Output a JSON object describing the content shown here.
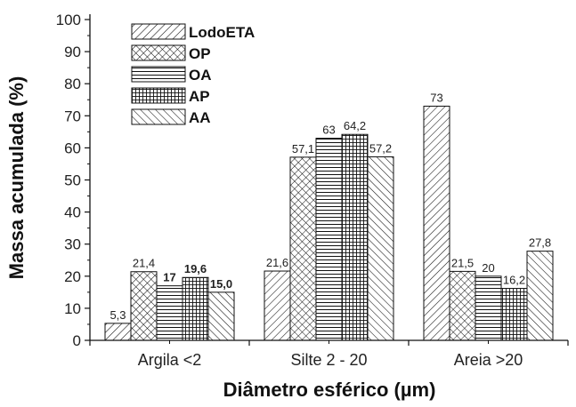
{
  "chart_data": {
    "type": "bar",
    "xlabel": "Diâmetro esférico (µm)",
    "ylabel": "Massa acumulada (%)",
    "ylim": [
      0,
      100
    ],
    "yticks": [
      "0",
      "10",
      "20",
      "30",
      "40",
      "50",
      "60",
      "70",
      "80",
      "90",
      "100"
    ],
    "categories": [
      "Argila <2",
      "Silte 2 - 20",
      "Areia >20"
    ],
    "legend_position": "top-left",
    "grid": false,
    "series": [
      {
        "name": "LodoETA",
        "pattern": "diagonal-forward",
        "values": [
          5.3,
          21.6,
          73
        ],
        "labels": [
          "5,3",
          "21,6",
          "73"
        ],
        "bold_labels": [
          false,
          false,
          false
        ]
      },
      {
        "name": "OP",
        "pattern": "crosshatch-diagonal",
        "values": [
          21.4,
          57.1,
          21.5
        ],
        "labels": [
          "21,4",
          "57,1",
          "21,5"
        ],
        "bold_labels": [
          false,
          false,
          false
        ]
      },
      {
        "name": "OA",
        "pattern": "horizontal",
        "values": [
          17,
          63,
          20
        ],
        "labels": [
          "17",
          "63",
          "20"
        ],
        "bold_labels": [
          true,
          false,
          false
        ]
      },
      {
        "name": "AP",
        "pattern": "grid",
        "values": [
          19.6,
          64.2,
          16.2
        ],
        "labels": [
          "19,6",
          "64,2",
          "16,2"
        ],
        "bold_labels": [
          true,
          false,
          false
        ]
      },
      {
        "name": "AA",
        "pattern": "diagonal-backward",
        "values": [
          15.0,
          57.2,
          27.8
        ],
        "labels": [
          "15,0",
          "57,2",
          "27,8"
        ],
        "bold_labels": [
          true,
          false,
          false
        ]
      }
    ]
  }
}
